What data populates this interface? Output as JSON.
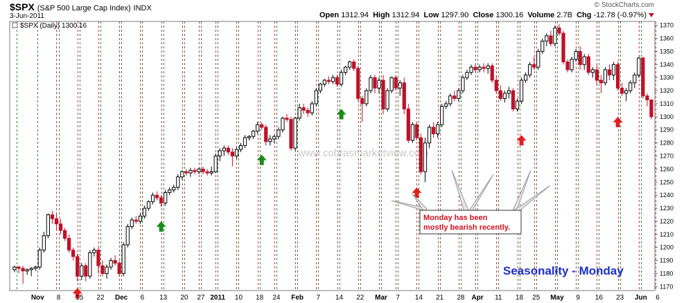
{
  "header": {
    "ticker": "$SPX",
    "name": "(S&P 500 Large Cap Index)",
    "exchange": "INDX",
    "date": "3-Jun-2011",
    "brand": "© StockCharts.com",
    "open_label": "Open",
    "open": "1312.94",
    "high_label": "High",
    "high": "1312.94",
    "low_label": "Low",
    "low": "1297.90",
    "close_label": "Close",
    "close": "1300.16",
    "volume_label": "Volume",
    "volume": "2.7B",
    "chg_label": "Chg",
    "chg": "-12.78 (-0.97%)"
  },
  "colors": {
    "up": "#000000",
    "down": "#c0102a",
    "green_line": "#2a8a2a",
    "red_line": "#d23040",
    "green_arrow": "#1a8a1a",
    "red_arrow": "#e02020"
  },
  "chart_data": {
    "type": "candlestick",
    "title": "Seasonality - Monday",
    "legend": "$SPX (Daily) 1300.16",
    "watermark": "www.cobrasmarketview.com",
    "annotation": "Monday has been mostly bearish recently.",
    "ylim": [
      1167,
      1373
    ],
    "yticks": [
      1170,
      1180,
      1190,
      1200,
      1210,
      1220,
      1230,
      1240,
      1250,
      1260,
      1270,
      1280,
      1290,
      1300,
      1310,
      1320,
      1330,
      1340,
      1350,
      1360,
      1370
    ],
    "x_labels": [
      {
        "i": 6,
        "text": "Nov",
        "bold": true
      },
      {
        "i": 11,
        "text": "8"
      },
      {
        "i": 16,
        "text": "15"
      },
      {
        "i": 21,
        "text": "22"
      },
      {
        "i": 26,
        "text": "Dec",
        "bold": true
      },
      {
        "i": 31,
        "text": "6"
      },
      {
        "i": 36,
        "text": "13"
      },
      {
        "i": 41,
        "text": "20"
      },
      {
        "i": 45,
        "text": "27"
      },
      {
        "i": 49,
        "text": "2011",
        "bold": true
      },
      {
        "i": 54,
        "text": "10"
      },
      {
        "i": 59,
        "text": "18"
      },
      {
        "i": 63,
        "text": "24"
      },
      {
        "i": 68,
        "text": "Feb",
        "bold": true
      },
      {
        "i": 73,
        "text": "7"
      },
      {
        "i": 78,
        "text": "14"
      },
      {
        "i": 83,
        "text": "22"
      },
      {
        "i": 88,
        "text": "Mar",
        "bold": true
      },
      {
        "i": 92,
        "text": "7"
      },
      {
        "i": 97,
        "text": "14"
      },
      {
        "i": 102,
        "text": "21"
      },
      {
        "i": 107,
        "text": "28"
      },
      {
        "i": 111,
        "text": "Apr",
        "bold": true
      },
      {
        "i": 116,
        "text": "11"
      },
      {
        "i": 121,
        "text": "18"
      },
      {
        "i": 125,
        "text": "25"
      },
      {
        "i": 130,
        "text": "May",
        "bold": true
      },
      {
        "i": 135,
        "text": "9"
      },
      {
        "i": 140,
        "text": "16"
      },
      {
        "i": 145,
        "text": "23"
      },
      {
        "i": 150,
        "text": "Jun",
        "bold": true
      },
      {
        "i": 154,
        "text": "6"
      }
    ],
    "green_week_lines": [
      1,
      6,
      11,
      16,
      21,
      26,
      31,
      36,
      41,
      45,
      49,
      54,
      59,
      63,
      68,
      73,
      78,
      83,
      88,
      92,
      97,
      102,
      107,
      111,
      116,
      121,
      125,
      130,
      135,
      140,
      145,
      150
    ],
    "red_monday_lines": [
      10,
      15,
      20,
      25,
      30,
      35,
      40,
      44,
      48,
      53,
      58,
      62,
      67,
      72,
      77,
      82,
      87,
      91,
      96,
      101,
      106,
      110,
      115,
      120,
      124,
      129,
      134,
      139,
      144,
      149,
      153
    ],
    "green_arrows": [
      {
        "i": 35,
        "y": 1220
      },
      {
        "i": 59,
        "y": 1271
      },
      {
        "i": 78,
        "y": 1306
      }
    ],
    "red_arrows": [
      {
        "i": 15,
        "y": 1169
      },
      {
        "i": 96,
        "y": 1246
      },
      {
        "i": 121,
        "y": 1286
      },
      {
        "i": 144,
        "y": 1300
      }
    ],
    "candles": [
      [
        1183,
        1186,
        1181,
        1185
      ],
      [
        1185,
        1186,
        1180,
        1184
      ],
      [
        1184,
        1186,
        1172,
        1182
      ],
      [
        1182,
        1184,
        1179,
        1183
      ],
      [
        1183,
        1185,
        1178,
        1184
      ],
      [
        1184,
        1186,
        1182,
        1185
      ],
      [
        1185,
        1200,
        1183,
        1198
      ],
      [
        1198,
        1212,
        1196,
        1209
      ],
      [
        1209,
        1226,
        1207,
        1225
      ],
      [
        1225,
        1228,
        1218,
        1222
      ],
      [
        1222,
        1226,
        1214,
        1218
      ],
      [
        1218,
        1222,
        1210,
        1213
      ],
      [
        1213,
        1215,
        1205,
        1207
      ],
      [
        1207,
        1210,
        1196,
        1198
      ],
      [
        1198,
        1200,
        1190,
        1193
      ],
      [
        1193,
        1195,
        1174,
        1178
      ],
      [
        1178,
        1188,
        1175,
        1186
      ],
      [
        1186,
        1188,
        1174,
        1178
      ],
      [
        1178,
        1198,
        1176,
        1196
      ],
      [
        1196,
        1200,
        1193,
        1198
      ],
      [
        1198,
        1200,
        1180,
        1186
      ],
      [
        1186,
        1190,
        1178,
        1180
      ],
      [
        1180,
        1187,
        1176,
        1185
      ],
      [
        1185,
        1192,
        1183,
        1190
      ],
      [
        1190,
        1194,
        1186,
        1188
      ],
      [
        1188,
        1190,
        1178,
        1180
      ],
      [
        1180,
        1204,
        1178,
        1202
      ],
      [
        1202,
        1218,
        1200,
        1216
      ],
      [
        1216,
        1223,
        1214,
        1221
      ],
      [
        1221,
        1224,
        1218,
        1220
      ],
      [
        1220,
        1226,
        1218,
        1224
      ],
      [
        1224,
        1232,
        1222,
        1230
      ],
      [
        1230,
        1236,
        1228,
        1235
      ],
      [
        1235,
        1242,
        1233,
        1240
      ],
      [
        1240,
        1243,
        1236,
        1238
      ],
      [
        1238,
        1240,
        1231,
        1234
      ],
      [
        1234,
        1244,
        1232,
        1242
      ],
      [
        1242,
        1246,
        1240,
        1244
      ],
      [
        1244,
        1248,
        1242,
        1246
      ],
      [
        1246,
        1256,
        1244,
        1254
      ],
      [
        1254,
        1259,
        1252,
        1258
      ],
      [
        1258,
        1260,
        1255,
        1257
      ],
      [
        1257,
        1261,
        1254,
        1259
      ],
      [
        1259,
        1261,
        1256,
        1258
      ],
      [
        1258,
        1261,
        1256,
        1260
      ],
      [
        1260,
        1262,
        1256,
        1258
      ],
      [
        1258,
        1260,
        1255,
        1257
      ],
      [
        1257,
        1262,
        1255,
        1258
      ],
      [
        1258,
        1272,
        1257,
        1270
      ],
      [
        1270,
        1276,
        1266,
        1274
      ],
      [
        1274,
        1278,
        1270,
        1276
      ],
      [
        1276,
        1278,
        1271,
        1273
      ],
      [
        1273,
        1276,
        1262,
        1270
      ],
      [
        1270,
        1277,
        1268,
        1275
      ],
      [
        1275,
        1280,
        1273,
        1278
      ],
      [
        1278,
        1286,
        1276,
        1284
      ],
      [
        1284,
        1286,
        1282,
        1285
      ],
      [
        1285,
        1290,
        1283,
        1289
      ],
      [
        1289,
        1296,
        1287,
        1294
      ],
      [
        1294,
        1296,
        1290,
        1292
      ],
      [
        1292,
        1294,
        1278,
        1281
      ],
      [
        1281,
        1286,
        1278,
        1283
      ],
      [
        1283,
        1286,
        1280,
        1285
      ],
      [
        1285,
        1292,
        1283,
        1290
      ],
      [
        1290,
        1300,
        1288,
        1299
      ],
      [
        1299,
        1302,
        1296,
        1298
      ],
      [
        1298,
        1300,
        1274,
        1276
      ],
      [
        1276,
        1300,
        1274,
        1299
      ],
      [
        1299,
        1310,
        1297,
        1307
      ],
      [
        1307,
        1310,
        1302,
        1305
      ],
      [
        1305,
        1307,
        1300,
        1303
      ],
      [
        1303,
        1312,
        1301,
        1310
      ],
      [
        1310,
        1322,
        1308,
        1320
      ],
      [
        1320,
        1326,
        1318,
        1325
      ],
      [
        1325,
        1329,
        1323,
        1328
      ],
      [
        1328,
        1331,
        1325,
        1327
      ],
      [
        1327,
        1332,
        1325,
        1330
      ],
      [
        1330,
        1332,
        1323,
        1325
      ],
      [
        1325,
        1336,
        1323,
        1334
      ],
      [
        1334,
        1339,
        1332,
        1338
      ],
      [
        1338,
        1343,
        1336,
        1342
      ],
      [
        1342,
        1344,
        1335,
        1337
      ],
      [
        1337,
        1339,
        1312,
        1314
      ],
      [
        1314,
        1316,
        1296,
        1310
      ],
      [
        1310,
        1322,
        1308,
        1320
      ],
      [
        1320,
        1332,
        1318,
        1330
      ],
      [
        1330,
        1332,
        1318,
        1322
      ],
      [
        1322,
        1330,
        1318,
        1328
      ],
      [
        1328,
        1332,
        1302,
        1306
      ],
      [
        1306,
        1322,
        1304,
        1320
      ],
      [
        1320,
        1331,
        1318,
        1330
      ],
      [
        1330,
        1332,
        1320,
        1322
      ],
      [
        1322,
        1328,
        1316,
        1326
      ],
      [
        1326,
        1330,
        1302,
        1306
      ],
      [
        1306,
        1310,
        1280,
        1282
      ],
      [
        1282,
        1296,
        1280,
        1294
      ],
      [
        1294,
        1296,
        1282,
        1284
      ],
      [
        1284,
        1287,
        1256,
        1258
      ],
      [
        1258,
        1284,
        1250,
        1280
      ],
      [
        1280,
        1294,
        1276,
        1292
      ],
      [
        1292,
        1296,
        1284,
        1287
      ],
      [
        1287,
        1296,
        1284,
        1294
      ],
      [
        1294,
        1310,
        1292,
        1308
      ],
      [
        1308,
        1312,
        1306,
        1310
      ],
      [
        1310,
        1318,
        1308,
        1316
      ],
      [
        1316,
        1320,
        1312,
        1314
      ],
      [
        1314,
        1322,
        1312,
        1320
      ],
      [
        1320,
        1332,
        1318,
        1330
      ],
      [
        1330,
        1336,
        1328,
        1334
      ],
      [
        1334,
        1340,
        1332,
        1338
      ],
      [
        1338,
        1340,
        1334,
        1336
      ],
      [
        1336,
        1340,
        1334,
        1338
      ],
      [
        1338,
        1341,
        1334,
        1337
      ],
      [
        1337,
        1341,
        1333,
        1339
      ],
      [
        1339,
        1341,
        1326,
        1328
      ],
      [
        1328,
        1332,
        1318,
        1320
      ],
      [
        1320,
        1324,
        1312,
        1314
      ],
      [
        1314,
        1320,
        1311,
        1318
      ],
      [
        1318,
        1323,
        1314,
        1320
      ],
      [
        1320,
        1322,
        1304,
        1306
      ],
      [
        1306,
        1314,
        1304,
        1312
      ],
      [
        1312,
        1330,
        1310,
        1328
      ],
      [
        1328,
        1334,
        1326,
        1332
      ],
      [
        1332,
        1342,
        1330,
        1340
      ],
      [
        1340,
        1346,
        1336,
        1338
      ],
      [
        1338,
        1352,
        1336,
        1350
      ],
      [
        1350,
        1360,
        1348,
        1358
      ],
      [
        1358,
        1364,
        1354,
        1362
      ],
      [
        1362,
        1366,
        1354,
        1356
      ],
      [
        1356,
        1370,
        1354,
        1368
      ],
      [
        1368,
        1371,
        1362,
        1364
      ],
      [
        1364,
        1366,
        1340,
        1342
      ],
      [
        1342,
        1344,
        1334,
        1336
      ],
      [
        1336,
        1346,
        1334,
        1344
      ],
      [
        1344,
        1352,
        1342,
        1350
      ],
      [
        1350,
        1354,
        1336,
        1340
      ],
      [
        1340,
        1348,
        1336,
        1346
      ],
      [
        1346,
        1348,
        1332,
        1334
      ],
      [
        1334,
        1338,
        1330,
        1336
      ],
      [
        1336,
        1340,
        1324,
        1328
      ],
      [
        1328,
        1332,
        1318,
        1326
      ],
      [
        1326,
        1338,
        1324,
        1336
      ],
      [
        1336,
        1340,
        1328,
        1332
      ],
      [
        1332,
        1342,
        1328,
        1340
      ],
      [
        1340,
        1342,
        1320,
        1322
      ],
      [
        1322,
        1326,
        1316,
        1318
      ],
      [
        1318,
        1322,
        1312,
        1320
      ],
      [
        1320,
        1328,
        1318,
        1326
      ],
      [
        1326,
        1334,
        1322,
        1332
      ],
      [
        1332,
        1346,
        1330,
        1345
      ],
      [
        1345,
        1346,
        1314,
        1316
      ],
      [
        1316,
        1318,
        1308,
        1313
      ],
      [
        1313,
        1313,
        1298,
        1300
      ]
    ]
  }
}
